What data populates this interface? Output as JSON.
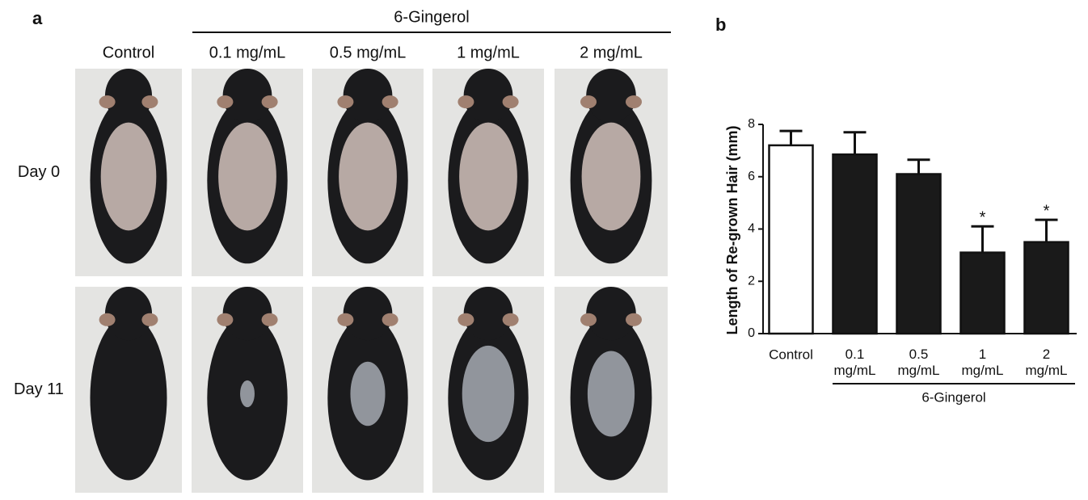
{
  "panel_a": {
    "label": "a",
    "group": "6-Gingerol",
    "columns": [
      "Control",
      "0.1 mg/mL",
      "0.5 mg/mL",
      "1 mg/mL",
      "2 mg/mL"
    ],
    "rows": [
      "Day 0",
      "Day 11"
    ]
  },
  "chart_data": {
    "type": "bar",
    "panel_label": "b",
    "ylabel": "Length of Re-grown Hair (mm)",
    "group_label": "6-Gingerol",
    "categories": [
      "Control",
      "0.1 mg/mL",
      "0.5 mg/mL",
      "1 mg/mL",
      "2 mg/mL"
    ],
    "values": [
      7.2,
      6.85,
      6.1,
      3.1,
      3.5
    ],
    "errors": [
      0.55,
      0.85,
      0.55,
      1.0,
      0.85
    ],
    "significance": [
      null,
      null,
      null,
      "*",
      "*"
    ],
    "colors": [
      "#ffffff",
      "#1a1a1a",
      "#1a1a1a",
      "#1a1a1a",
      "#1a1a1a"
    ],
    "ylim": [
      0,
      8
    ],
    "yticks": [
      0,
      2,
      4,
      6,
      8
    ]
  }
}
